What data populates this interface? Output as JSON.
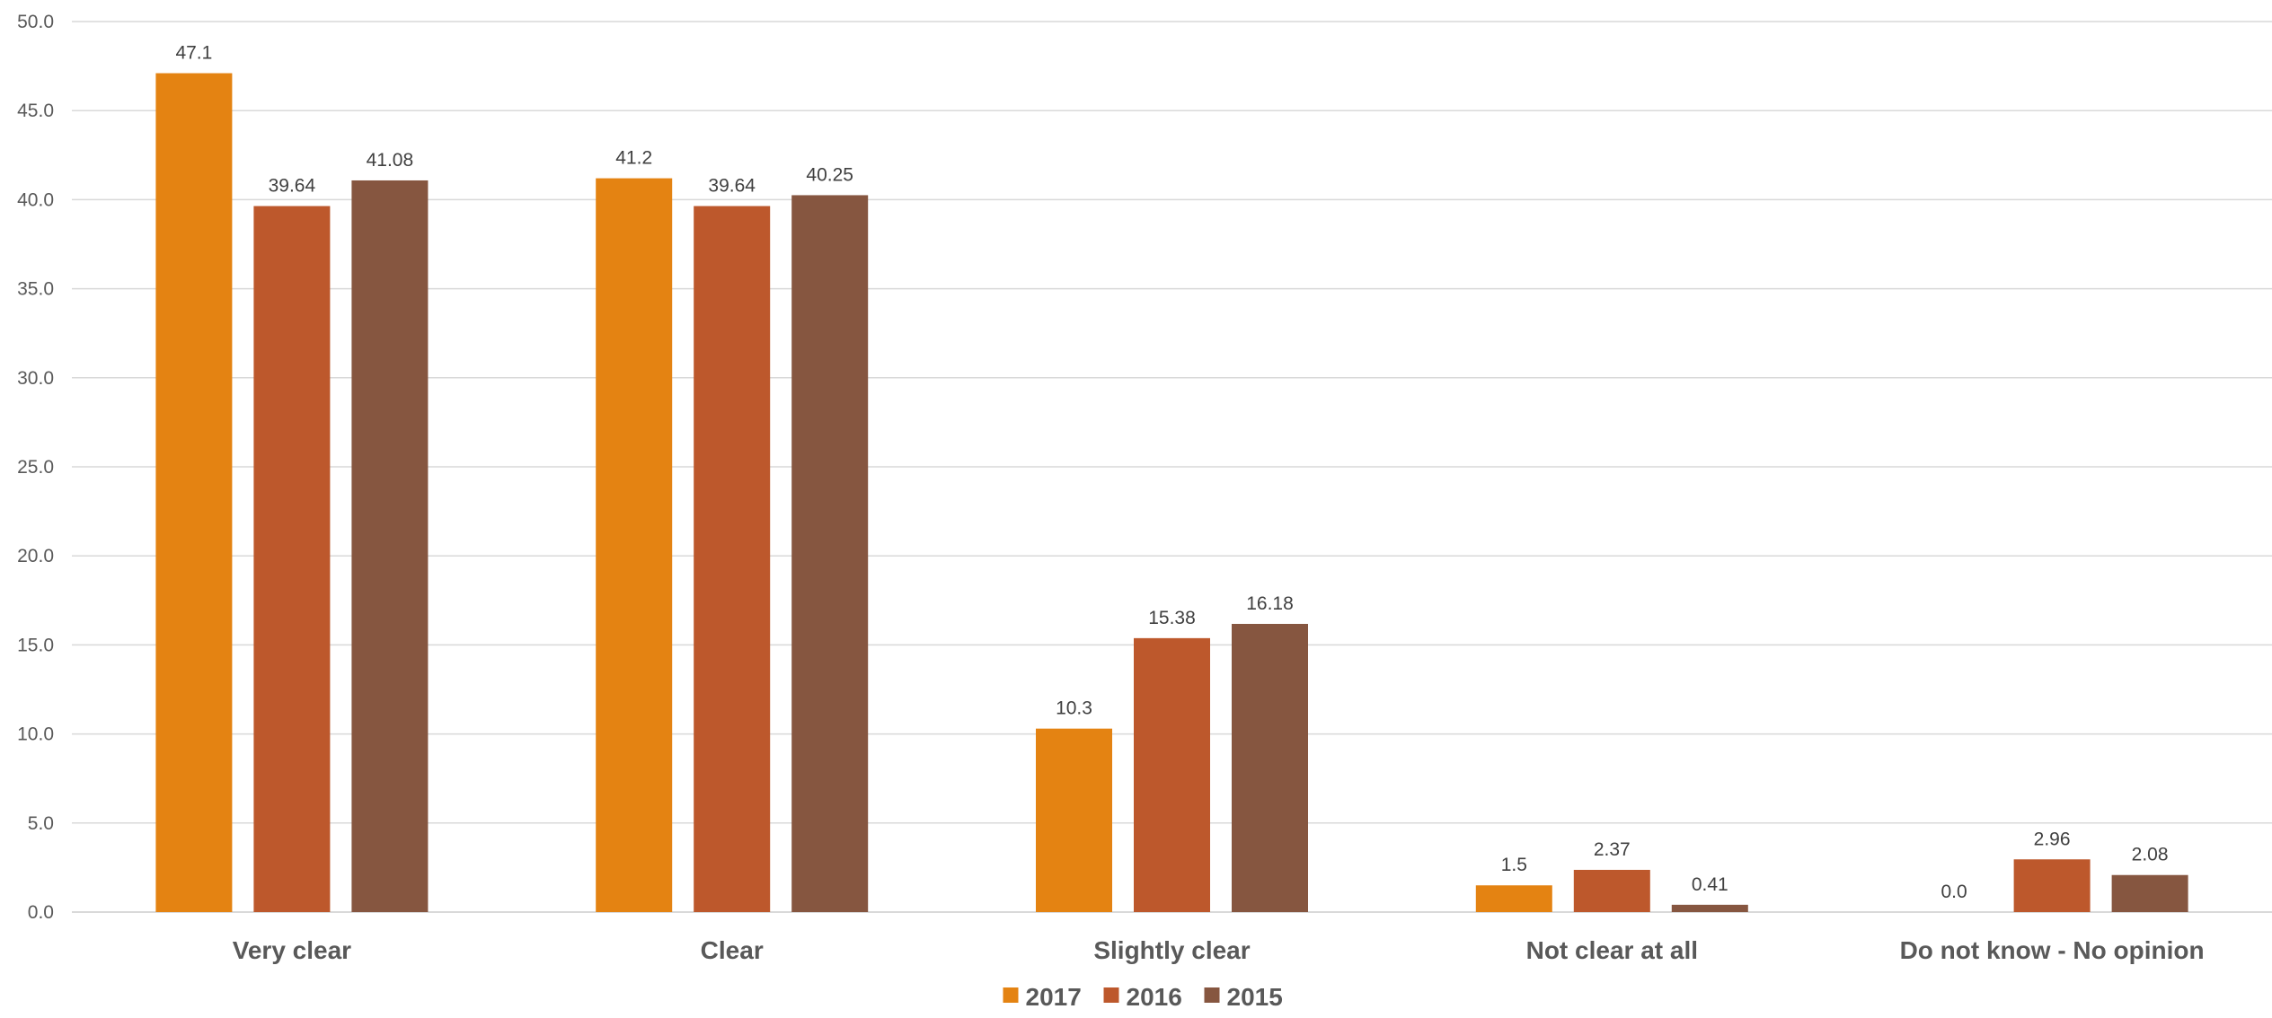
{
  "chart_data": {
    "type": "bar",
    "title": "",
    "xlabel": "",
    "ylabel": "",
    "categories": [
      "Very clear",
      "Clear",
      "Slightly clear",
      "Not clear at all",
      "Do not know - No opinion"
    ],
    "series": [
      {
        "name": "2017",
        "color": "#E48312",
        "values": [
          47.1,
          41.2,
          10.3,
          1.5,
          0.0
        ],
        "labels": [
          "47.1",
          "41.2",
          "10.3",
          "1.5",
          "0.0"
        ]
      },
      {
        "name": "2016",
        "color": "#BD582C",
        "values": [
          39.64,
          39.64,
          15.38,
          2.37,
          2.96
        ],
        "labels": [
          "39.64",
          "39.64",
          "15.38",
          "2.37",
          "2.96"
        ]
      },
      {
        "name": "2015",
        "color": "#865640",
        "values": [
          41.08,
          40.25,
          16.18,
          0.41,
          2.08
        ],
        "labels": [
          "41.08",
          "40.25",
          "16.18",
          "0.41",
          "2.08"
        ]
      }
    ],
    "ylim": [
      0,
      50
    ],
    "yticks": [
      "0.0",
      "5.0",
      "10.0",
      "15.0",
      "20.0",
      "25.0",
      "30.0",
      "35.0",
      "40.0",
      "45.0",
      "50.0"
    ],
    "grid": true,
    "legend_position": "bottom-center"
  }
}
